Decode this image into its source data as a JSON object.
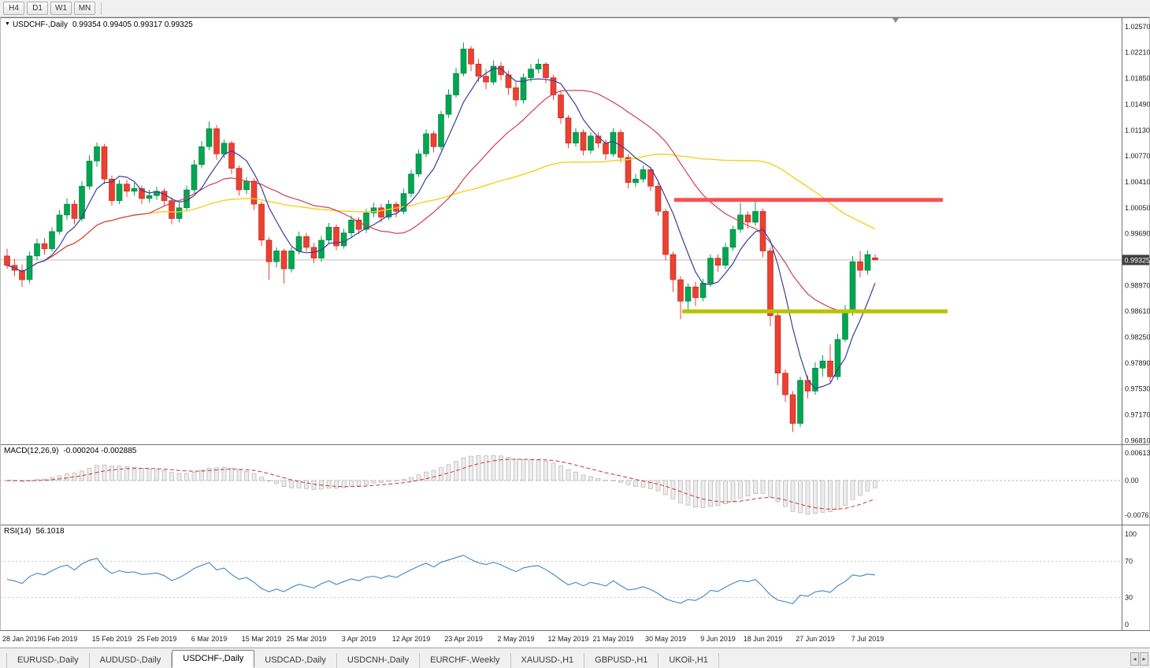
{
  "toolbar": {
    "buttons": [
      {
        "label": "H4",
        "active": false
      },
      {
        "label": "D1",
        "active": false
      },
      {
        "label": "W1",
        "active": false
      },
      {
        "label": "MN",
        "active": false
      }
    ]
  },
  "chart": {
    "title_marker": "▼",
    "symbol_label": "USDCHF-,Daily",
    "ohlc_text": "0.99354 0.99405 0.99317 0.99325",
    "current_price": "0.99325",
    "price_axis_labels": [
      "1.02570",
      "1.02210",
      "1.01850",
      "1.01490",
      "1.01130",
      "1.00770",
      "1.00410",
      "1.00050",
      "0.99690",
      "0.99330",
      "0.98970",
      "0.98610",
      "0.98250",
      "0.97890",
      "0.97530",
      "0.97170",
      "0.96810"
    ],
    "x_axis_labels": [
      {
        "label": "28 Jan 2019",
        "index": 0
      },
      {
        "label": "6 Feb 2019",
        "index": 7
      },
      {
        "label": "15 Feb 2019",
        "index": 14
      },
      {
        "label": "25 Feb 2019",
        "index": 20
      },
      {
        "label": "6 Mar 2019",
        "index": 27
      },
      {
        "label": "15 Mar 2019",
        "index": 34
      },
      {
        "label": "25 Mar 2019",
        "index": 40
      },
      {
        "label": "3 Apr 2019",
        "index": 47
      },
      {
        "label": "12 Apr 2019",
        "index": 54
      },
      {
        "label": "23 Apr 2019",
        "index": 61
      },
      {
        "label": "2 May 2019",
        "index": 68
      },
      {
        "label": "12 May 2019",
        "index": 75
      },
      {
        "label": "21 May 2019",
        "index": 81
      },
      {
        "label": "30 May 2019",
        "index": 88
      },
      {
        "label": "9 Jun 2019",
        "index": 95
      },
      {
        "label": "18 Jun 2019",
        "index": 101
      },
      {
        "label": "27 Jun 2019",
        "index": 108
      },
      {
        "label": "7 Jul 2019",
        "index": 115
      }
    ],
    "levels": [
      {
        "name": "resistance",
        "price": 1.0016,
        "color": "#f85050",
        "x_from": 856,
        "x_to": 1197,
        "thickness": 5
      },
      {
        "name": "support",
        "price": 0.9861,
        "color": "#b9c400",
        "x_from": 866,
        "x_to": 1203,
        "thickness": 5
      }
    ],
    "ma_lines": [
      {
        "name": "slow",
        "period": 50,
        "color": "#f3d21b",
        "width": 1.4
      },
      {
        "name": "medium",
        "period": 20,
        "color": "#cb4154",
        "width": 1.2
      },
      {
        "name": "fast",
        "period": 6,
        "color": "#3b3b9e",
        "width": 1.2
      }
    ],
    "colors": {
      "bull": "#00a651",
      "bull_stroke": "#0a7a3e",
      "bear": "#ec4030",
      "bear_stroke": "#b3271d",
      "price_line": "#b4b4b4",
      "badge_bg": "#3f3f3f",
      "badge_text": "#ffffff",
      "pane_border": "#707070"
    }
  },
  "chart_data": {
    "type": "candlestick",
    "title": "USDCHF-,Daily",
    "symbol": "USDCHF",
    "timeframe": "Daily",
    "x_range": [
      "28 Jan 2019",
      "10 Jul 2019"
    ],
    "ylim": [
      0.9676,
      1.027
    ],
    "current_bar": {
      "open": 0.99354,
      "high": 0.99405,
      "low": 0.99317,
      "close": 0.99325
    },
    "candles_ohlc": [
      [
        0.9938,
        0.9948,
        0.992,
        0.9925
      ],
      [
        0.9925,
        0.9934,
        0.991,
        0.9918
      ],
      [
        0.9918,
        0.9926,
        0.9895,
        0.9905
      ],
      [
        0.9905,
        0.9944,
        0.99,
        0.9938
      ],
      [
        0.9938,
        0.9962,
        0.9932,
        0.9955
      ],
      [
        0.9955,
        0.9963,
        0.994,
        0.9948
      ],
      [
        0.9948,
        0.9978,
        0.9944,
        0.9972
      ],
      [
        0.9972,
        1.0002,
        0.9968,
        0.9995
      ],
      [
        0.9995,
        1.0018,
        0.9988,
        1.001
      ],
      [
        1.001,
        1.0016,
        0.9982,
        0.999
      ],
      [
        0.999,
        1.0042,
        0.9986,
        1.0035
      ],
      [
        1.0035,
        1.0078,
        1.003,
        1.007
      ],
      [
        1.007,
        1.0096,
        1.0062,
        1.009
      ],
      [
        1.009,
        1.0094,
        1.0038,
        1.0045
      ],
      [
        1.0045,
        1.005,
        1.0008,
        1.0015
      ],
      [
        1.0015,
        1.0044,
        1.001,
        1.0038
      ],
      [
        1.0038,
        1.0044,
        1.002,
        1.0028
      ],
      [
        1.0028,
        1.004,
        1.0022,
        1.0032
      ],
      [
        1.0032,
        1.0036,
        1.001,
        1.0018
      ],
      [
        1.0018,
        1.003,
        1.0012,
        1.0022
      ],
      [
        1.0022,
        1.0034,
        1.0016,
        1.0028
      ],
      [
        1.0028,
        1.0032,
        1.0008,
        1.0015
      ],
      [
        1.0015,
        1.002,
        0.9982,
        0.999
      ],
      [
        0.999,
        1.0012,
        0.9985,
        1.0005
      ],
      [
        1.0005,
        1.0036,
        1.0,
        1.003
      ],
      [
        1.003,
        1.0072,
        1.0026,
        1.0065
      ],
      [
        1.0065,
        1.0098,
        1.006,
        1.009
      ],
      [
        1.009,
        1.0125,
        1.0085,
        1.0115
      ],
      [
        1.0115,
        1.012,
        1.0072,
        1.008
      ],
      [
        1.008,
        1.01,
        1.0074,
        1.0095
      ],
      [
        1.0095,
        1.0098,
        1.0052,
        1.006
      ],
      [
        1.006,
        1.0064,
        1.0022,
        1.003
      ],
      [
        1.003,
        1.0048,
        1.0024,
        1.0042
      ],
      [
        1.0042,
        1.0046,
        1.0002,
        1.001
      ],
      [
        1.001,
        1.0014,
        0.9952,
        0.996
      ],
      [
        0.996,
        0.9964,
        0.9905,
        0.993
      ],
      [
        0.993,
        0.995,
        0.9922,
        0.9945
      ],
      [
        0.9945,
        0.9948,
        0.99,
        0.992
      ],
      [
        0.992,
        0.995,
        0.9915,
        0.9945
      ],
      [
        0.9945,
        0.9972,
        0.994,
        0.9965
      ],
      [
        0.9965,
        0.997,
        0.9944,
        0.995
      ],
      [
        0.995,
        0.9956,
        0.9928,
        0.9935
      ],
      [
        0.9935,
        0.9966,
        0.993,
        0.996
      ],
      [
        0.996,
        0.9984,
        0.9955,
        0.9978
      ],
      [
        0.9978,
        0.9982,
        0.9946,
        0.9952
      ],
      [
        0.9952,
        0.9976,
        0.9948,
        0.997
      ],
      [
        0.997,
        0.9994,
        0.9965,
        0.9988
      ],
      [
        0.9988,
        0.9992,
        0.9968,
        0.9975
      ],
      [
        0.9975,
        1.0004,
        0.997,
        0.9998
      ],
      [
        0.9998,
        1.0012,
        0.9992,
        1.0005
      ],
      [
        1.0005,
        1.001,
        0.9985,
        0.9992
      ],
      [
        0.9992,
        1.0016,
        0.9988,
        1.001
      ],
      [
        1.001,
        1.0014,
        0.9992,
        1.0
      ],
      [
        1.0,
        1.0032,
        0.9996,
        1.0025
      ],
      [
        1.0025,
        1.0058,
        1.002,
        1.0052
      ],
      [
        1.0052,
        1.0086,
        1.0048,
        1.008
      ],
      [
        1.008,
        1.0114,
        1.0075,
        1.0108
      ],
      [
        1.0108,
        1.0112,
        1.0082,
        1.009
      ],
      [
        1.009,
        1.014,
        1.0085,
        1.0135
      ],
      [
        1.0135,
        1.017,
        1.013,
        1.0162
      ],
      [
        1.0162,
        1.02,
        1.0158,
        1.0192
      ],
      [
        1.0192,
        1.0235,
        1.0188,
        1.0226
      ],
      [
        1.0226,
        1.023,
        1.0195,
        1.0205
      ],
      [
        1.0205,
        1.0212,
        1.018,
        1.0188
      ],
      [
        1.0188,
        1.0198,
        1.017,
        1.018
      ],
      [
        1.018,
        1.021,
        1.0176,
        1.0202
      ],
      [
        1.0202,
        1.0208,
        1.0182,
        1.019
      ],
      [
        1.019,
        1.0196,
        1.0162,
        1.0172
      ],
      [
        1.0172,
        1.018,
        1.0146,
        1.0155
      ],
      [
        1.0155,
        1.0192,
        1.015,
        1.0186
      ],
      [
        1.0186,
        1.0205,
        1.018,
        1.0198
      ],
      [
        1.0198,
        1.0212,
        1.0192,
        1.0205
      ],
      [
        1.0205,
        1.0208,
        1.0178,
        1.0186
      ],
      [
        1.0186,
        1.019,
        1.0155,
        1.0162
      ],
      [
        1.0162,
        1.0168,
        1.0122,
        1.013
      ],
      [
        1.013,
        1.0134,
        1.0088,
        1.0095
      ],
      [
        1.0095,
        1.0116,
        1.009,
        1.011
      ],
      [
        1.011,
        1.0114,
        1.0078,
        1.0085
      ],
      [
        1.0085,
        1.011,
        1.008,
        1.0105
      ],
      [
        1.0105,
        1.011,
        1.0088,
        1.0095
      ],
      [
        1.0095,
        1.01,
        1.0072,
        1.008
      ],
      [
        1.008,
        1.0116,
        1.0076,
        1.011
      ],
      [
        1.011,
        1.0114,
        1.0068,
        1.0075
      ],
      [
        1.0075,
        1.008,
        1.0032,
        1.004
      ],
      [
        1.004,
        1.0052,
        1.0034,
        1.0045
      ],
      [
        1.0045,
        1.0064,
        1.004,
        1.0058
      ],
      [
        1.0058,
        1.0062,
        1.0028,
        1.0035
      ],
      [
        1.0035,
        1.004,
        0.9994,
        1.0
      ],
      [
        1.0,
        1.0004,
        0.9932,
        0.994
      ],
      [
        0.994,
        0.9944,
        0.9888,
        0.9905
      ],
      [
        0.9905,
        0.991,
        0.985,
        0.9875
      ],
      [
        0.9875,
        0.99,
        0.9862,
        0.9895
      ],
      [
        0.9895,
        0.9902,
        0.9868,
        0.988
      ],
      [
        0.988,
        0.9906,
        0.9875,
        0.99
      ],
      [
        0.99,
        0.994,
        0.9895,
        0.9935
      ],
      [
        0.9935,
        0.994,
        0.9916,
        0.9925
      ],
      [
        0.9925,
        0.9956,
        0.992,
        0.995
      ],
      [
        0.995,
        0.998,
        0.9945,
        0.9975
      ],
      [
        0.9975,
        1.0012,
        0.997,
        0.9995
      ],
      [
        0.9995,
        1.0,
        0.9976,
        0.9985
      ],
      [
        0.9985,
        1.0015,
        0.998,
        1.0
      ],
      [
        1.0,
        1.0004,
        0.9936,
        0.9945
      ],
      [
        0.9945,
        0.995,
        0.984,
        0.9855
      ],
      [
        0.9855,
        0.986,
        0.9758,
        0.9775
      ],
      [
        0.9775,
        0.978,
        0.9735,
        0.9745
      ],
      [
        0.9745,
        0.975,
        0.9693,
        0.9705
      ],
      [
        0.9705,
        0.977,
        0.97,
        0.9765
      ],
      [
        0.9765,
        0.9772,
        0.974,
        0.975
      ],
      [
        0.975,
        0.979,
        0.9745,
        0.9782
      ],
      [
        0.9782,
        0.98,
        0.977,
        0.9792
      ],
      [
        0.9792,
        0.9815,
        0.976,
        0.977
      ],
      [
        0.977,
        0.983,
        0.9765,
        0.9822
      ],
      [
        0.9822,
        0.987,
        0.9818,
        0.986
      ],
      [
        0.986,
        0.9938,
        0.9855,
        0.993
      ],
      [
        0.993,
        0.9945,
        0.9908,
        0.9918
      ],
      [
        0.9918,
        0.9946,
        0.9912,
        0.994
      ],
      [
        0.99354,
        0.99405,
        0.99317,
        0.99325
      ]
    ]
  },
  "macd": {
    "label": "MACD(12,26,9)",
    "values_text": "-0.000204 -0.002885",
    "params": {
      "fast": 12,
      "slow": 26,
      "signal": 9
    },
    "axis_labels": [
      "0.00613",
      "0.00",
      "-0.00761"
    ],
    "histogram_fill": "#ededed",
    "histogram_stroke": "#b2b2b2",
    "signal_color": "#cc3333"
  },
  "rsi": {
    "label": "RSI(14)",
    "value_text": "56.1018",
    "period": 14,
    "levels": [
      70,
      30
    ],
    "axis_labels": [
      "100",
      "70",
      "30",
      "0"
    ],
    "line_color": "#3f87c4"
  },
  "tabs": {
    "items": [
      {
        "label": "EURUSD-,Daily",
        "active": false
      },
      {
        "label": "AUDUSD-,Daily",
        "active": false
      },
      {
        "label": "USDCHF-,Daily",
        "active": true
      },
      {
        "label": "USDCAD-,Daily",
        "active": false
      },
      {
        "label": "USDCNH-,Daily",
        "active": false
      },
      {
        "label": "EURCHF-,Weekly",
        "active": false
      },
      {
        "label": "XAUUSD-,H1",
        "active": false
      },
      {
        "label": "GBPUSD-,H1",
        "active": false
      },
      {
        "label": "UKOil-,H1",
        "active": false
      }
    ],
    "scroll_left_glyph": "◂",
    "scroll_right_glyph": "▸"
  }
}
